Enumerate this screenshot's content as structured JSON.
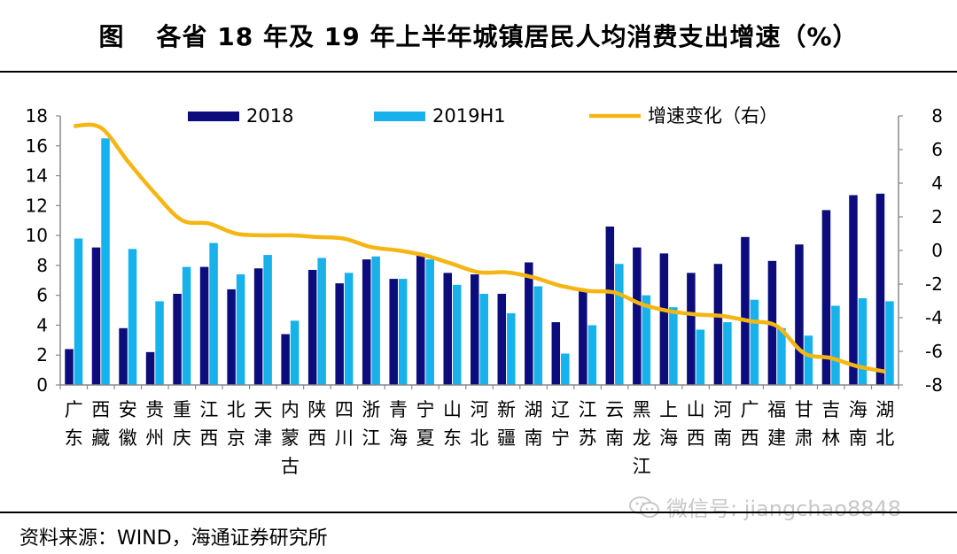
{
  "figure": {
    "label": "图",
    "title": "各省 18 年及 19 年上半年城镇居民人均消费支出增速（%）",
    "source": "资料来源：WIND，海通证券研究所",
    "watermark": "微信号: jiangchao8848"
  },
  "chart_data": {
    "type": "bar",
    "title": "各省 18 年及 19 年上半年城镇居民人均消费支出增速（%）",
    "categories": [
      "广东",
      "西藏",
      "安徽",
      "贵州",
      "重庆",
      "江西",
      "北京",
      "天津",
      "内蒙古",
      "陕西",
      "四川",
      "浙江",
      "青海",
      "宁夏",
      "山东",
      "河北",
      "新疆",
      "湖南",
      "辽宁",
      "江苏",
      "云南",
      "黑龙江",
      "上海",
      "山西",
      "河南",
      "广西",
      "福建",
      "甘肃",
      "吉林",
      "海南",
      "湖北"
    ],
    "series": [
      {
        "name": "2018",
        "axis": "left",
        "color": "#0c0c7c",
        "values": [
          2.4,
          9.2,
          3.8,
          2.2,
          6.1,
          7.9,
          6.4,
          7.8,
          3.4,
          7.7,
          6.8,
          8.4,
          7.1,
          8.7,
          7.5,
          7.4,
          6.1,
          8.2,
          4.2,
          6.4,
          10.6,
          9.2,
          8.8,
          7.5,
          8.1,
          9.9,
          8.3,
          9.4,
          11.7,
          12.7,
          12.8
        ]
      },
      {
        "name": "2019H1",
        "axis": "left",
        "color": "#17b1ec",
        "values": [
          9.8,
          16.5,
          9.1,
          5.6,
          7.9,
          9.5,
          7.4,
          8.7,
          4.3,
          8.5,
          7.5,
          8.6,
          7.1,
          8.4,
          6.7,
          6.1,
          4.8,
          6.6,
          2.1,
          4.0,
          8.1,
          6.0,
          5.2,
          3.7,
          4.2,
          5.7,
          3.8,
          3.3,
          5.3,
          5.8,
          5.6
        ]
      },
      {
        "name": "增速变化（右）",
        "axis": "right",
        "type": "line",
        "color": "#f5b614",
        "values": [
          7.4,
          7.3,
          5.3,
          3.4,
          1.8,
          1.6,
          1.0,
          0.9,
          0.9,
          0.8,
          0.7,
          0.2,
          0.0,
          -0.3,
          -0.8,
          -1.3,
          -1.3,
          -1.6,
          -2.1,
          -2.4,
          -2.5,
          -3.2,
          -3.6,
          -3.8,
          -3.9,
          -4.2,
          -4.5,
          -6.1,
          -6.4,
          -6.9,
          -7.2
        ]
      }
    ],
    "left_axis": {
      "ylim": [
        0,
        18
      ],
      "ticks": [
        0,
        2,
        4,
        6,
        8,
        10,
        12,
        14,
        16,
        18
      ]
    },
    "right_axis": {
      "ylim": [
        -8,
        8
      ],
      "ticks": [
        -8,
        -6,
        -4,
        -2,
        0,
        2,
        4,
        6,
        8
      ]
    },
    "legend_position": "top",
    "grid": false
  }
}
